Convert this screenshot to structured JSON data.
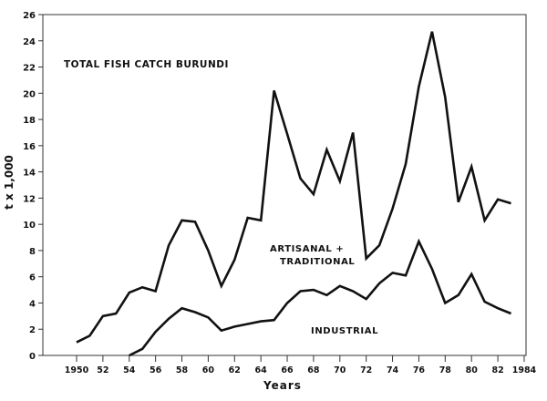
{
  "chart_data": {
    "type": "line",
    "title": "TOTAL FISH CATCH BURUNDI",
    "xlabel": "Years",
    "ylabel": "t x 1,000",
    "xlim": [
      1947.5,
      1984
    ],
    "ylim": [
      0,
      26
    ],
    "yticks": [
      0,
      2,
      4,
      6,
      8,
      10,
      12,
      14,
      16,
      18,
      20,
      22,
      24,
      26
    ],
    "xticks": [
      1950,
      1952,
      1954,
      1956,
      1958,
      1960,
      1962,
      1964,
      1966,
      1968,
      1970,
      1972,
      1974,
      1976,
      1978,
      1980,
      1982,
      1984
    ],
    "xtick_labels": [
      "1950",
      "52",
      "54",
      "56",
      "58",
      "60",
      "62",
      "64",
      "66",
      "68",
      "70",
      "72",
      "74",
      "76",
      "78",
      "80",
      "82",
      "1984"
    ],
    "grid": false,
    "annotations": [
      "ARTISANAL +",
      "TRADITIONAL",
      "INDUSTRIAL"
    ],
    "series": [
      {
        "name": "Total (Artisanal + Traditional + Industrial)",
        "x": [
          1950,
          1951,
          1952,
          1953,
          1954,
          1955,
          1956,
          1957,
          1958,
          1959,
          1960,
          1961,
          1962,
          1963,
          1964,
          1965,
          1966,
          1967,
          1968,
          1969,
          1970,
          1971,
          1972,
          1973,
          1974,
          1975,
          1976,
          1977,
          1978,
          1979,
          1980,
          1981,
          1982,
          1983
        ],
        "values": [
          1.0,
          1.5,
          3.0,
          3.2,
          4.8,
          5.2,
          4.9,
          8.4,
          10.3,
          10.2,
          8.0,
          5.3,
          7.3,
          10.5,
          10.3,
          20.2,
          16.9,
          13.5,
          12.3,
          15.7,
          13.3,
          17.0,
          7.4,
          8.4,
          11.2,
          14.6,
          20.5,
          24.7,
          19.7,
          11.7,
          14.4,
          10.3,
          11.9,
          11.6
        ]
      },
      {
        "name": "Industrial",
        "x": [
          1954,
          1955,
          1956,
          1957,
          1958,
          1959,
          1960,
          1961,
          1962,
          1963,
          1964,
          1965,
          1966,
          1967,
          1968,
          1969,
          1970,
          1971,
          1972,
          1973,
          1974,
          1975,
          1976,
          1977,
          1978,
          1979,
          1980,
          1981,
          1982,
          1983
        ],
        "values": [
          0,
          0.5,
          1.8,
          2.8,
          3.6,
          3.3,
          2.9,
          1.9,
          2.2,
          2.4,
          2.6,
          2.7,
          4.0,
          4.9,
          5.0,
          4.6,
          5.3,
          4.9,
          4.3,
          5.5,
          6.3,
          6.1,
          8.7,
          6.6,
          4.0,
          4.6,
          6.2,
          4.1,
          3.6,
          3.2
        ]
      }
    ]
  }
}
